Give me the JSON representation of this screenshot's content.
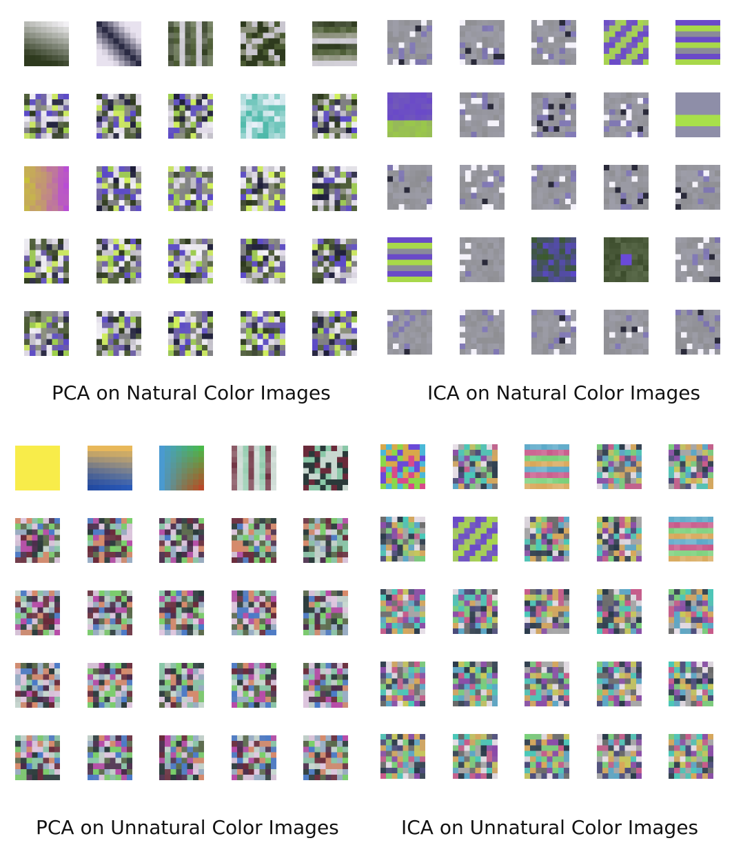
{
  "panels": [
    {
      "id": "pca-natural",
      "caption": "PCA on Natural Color Images",
      "palette": [
        "#2e3a1e",
        "#4a5a32",
        "#8a8f7a",
        "#c9c6cf",
        "#e8e2ef",
        "#6a5aa8",
        "#5a48c8",
        "#9ed04a",
        "#d2f25a",
        "#1e1e3a",
        "#f4f2f8",
        "#7f7f82"
      ],
      "special": [
        "gradient-dark-corner",
        "diag-dark",
        "vertical-bars",
        "mixed-blocks",
        "horizontal-bands",
        "",
        "",
        "",
        "teal-blocks",
        "",
        "yellow-magenta",
        "",
        "",
        "",
        "",
        "",
        "",
        "",
        "",
        "",
        "",
        "",
        "",
        "",
        ""
      ]
    },
    {
      "id": "ica-natural",
      "caption": "ICA on Natural Color Images",
      "palette": [
        "#9a9a9e",
        "#8f8fa0",
        "#a9a7b5",
        "#7a78a6",
        "#6a5ac8",
        "#b2e04e",
        "#8a9a5a",
        "#c8c3dc",
        "#2a2a3a",
        "#f4f2fa",
        "#5e5ea6",
        "#8c8c8e"
      ],
      "special": [
        "",
        "",
        "",
        "diag-green-purple",
        "horizontal-green-purple",
        "purple-green-block",
        "",
        "",
        "",
        "green-band",
        "",
        "",
        "",
        "",
        "",
        "horizontal-green-purple",
        "",
        "dark-purple-green",
        "dark-purple-blob",
        "",
        "",
        "",
        "",
        "",
        ""
      ]
    },
    {
      "id": "pca-unnatural",
      "caption": "PCA on Unnatural Color Images",
      "palette": [
        "#6a2a3a",
        "#c8d8d0",
        "#2a3a3a",
        "#8ac8a8",
        "#b84aa8",
        "#4a7ac8",
        "#7ad06a",
        "#d88a6a",
        "#4a2a4a",
        "#9ab0c8",
        "#e0c8e0",
        "#5a6a4a"
      ],
      "special": [
        "solid-yellow",
        "gradient-blue-orange",
        "gradient-green-red",
        "vertical-bars",
        "mixed-blocks",
        "",
        "",
        "",
        "",
        "",
        "",
        "",
        "",
        "",
        "",
        "",
        "",
        "",
        "",
        "",
        "",
        "",
        "",
        "",
        ""
      ]
    },
    {
      "id": "ica-unnatural",
      "caption": "ICA on Unnatural Color Images",
      "palette": [
        "#5aa8c8",
        "#c85a8a",
        "#7ad07a",
        "#d8a85a",
        "#4a4a7a",
        "#a8a8a8",
        "#e8e0e8",
        "#2a3a4a",
        "#8a4aa8",
        "#4ac8b8",
        "#c8c85a",
        "#6a6a6a"
      ],
      "special": [
        "rainbow-blocks",
        "",
        "horizontal-bands",
        "",
        "",
        "",
        "diag-green-purple",
        "",
        "",
        "horizontal-bands",
        "",
        "",
        "",
        "",
        "",
        "",
        "",
        "",
        "",
        "",
        "",
        "",
        "",
        "",
        ""
      ]
    }
  ]
}
